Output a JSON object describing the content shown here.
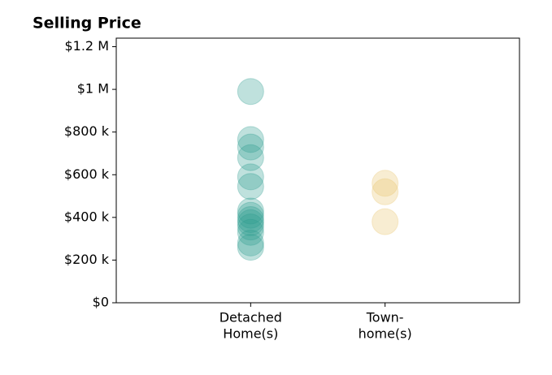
{
  "chart_data": {
    "type": "strip",
    "title": "Selling Price",
    "categories": [
      [
        "Detached",
        "Home(s)"
      ],
      [
        "Town-",
        "home(s)"
      ]
    ],
    "values": [
      [
        990000,
        765000,
        730000,
        680000,
        590000,
        545000,
        430000,
        410000,
        390000,
        375000,
        355000,
        330000,
        280000,
        260000
      ],
      [
        560000,
        520000,
        380000
      ]
    ],
    "colors": [
      "#2a9d8f",
      "#e9c46a"
    ],
    "ylim": [
      0,
      1240000
    ],
    "yticks": [
      {
        "value": 0,
        "label": "$0"
      },
      {
        "value": 200000,
        "label": "$200 k"
      },
      {
        "value": 400000,
        "label": "$400 k"
      },
      {
        "value": 600000,
        "label": "$600 k"
      },
      {
        "value": 800000,
        "label": "$800 k"
      },
      {
        "value": 1000000,
        "label": "$1 M"
      },
      {
        "value": 1200000,
        "label": "$1.2 M"
      }
    ]
  }
}
